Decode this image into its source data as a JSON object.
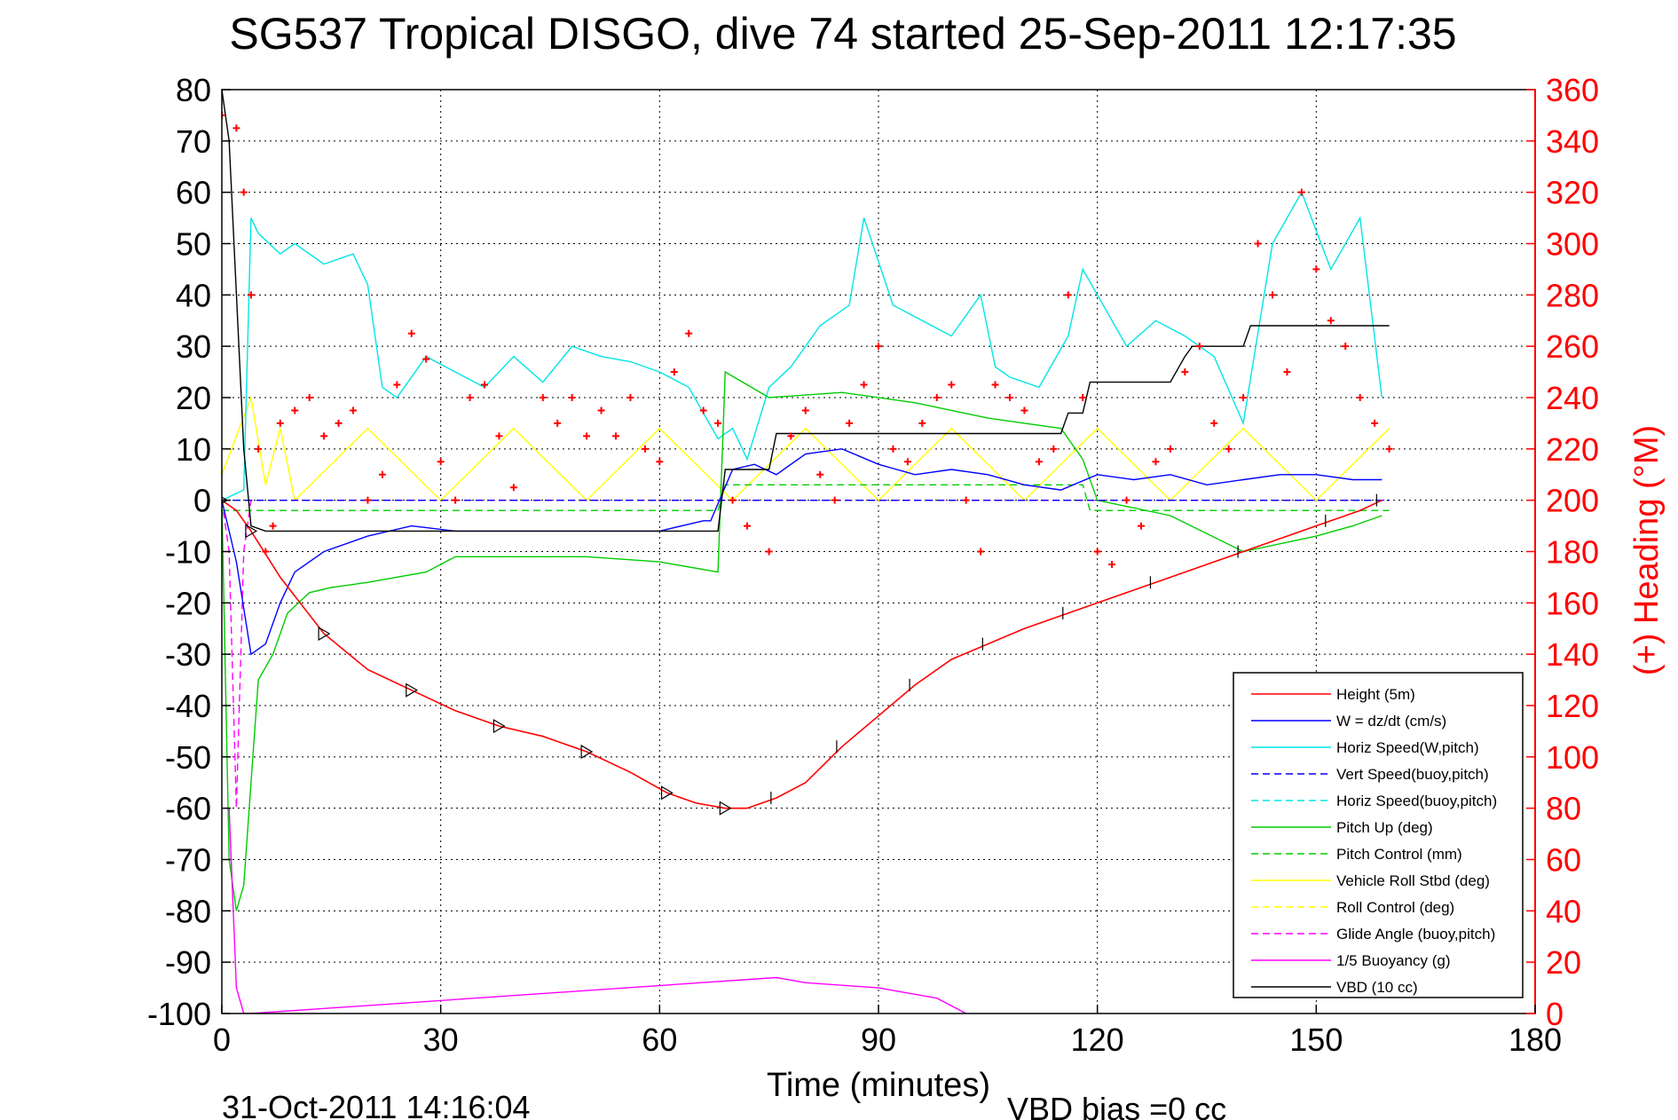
{
  "chart_data": {
    "type": "line",
    "title": "SG537 Tropical DISGO, dive 74 started 25-Sep-2011 12:17:35",
    "xlabel": "Time (minutes)",
    "ylabel_right": "(+) Heading (°M)",
    "xlim": [
      0,
      180
    ],
    "ylim": [
      -100,
      80
    ],
    "ylim_right": [
      0,
      360
    ],
    "x_ticks": [
      0,
      30,
      60,
      90,
      120,
      150,
      180
    ],
    "y_ticks": [
      80,
      70,
      60,
      50,
      40,
      30,
      20,
      10,
      0,
      -10,
      -20,
      -30,
      -40,
      -50,
      -60,
      -70,
      -80,
      -90,
      -100
    ],
    "y_right_ticks": [
      360,
      340,
      320,
      300,
      280,
      260,
      240,
      220,
      200,
      180,
      160,
      140,
      120,
      100,
      80,
      60,
      40,
      20,
      0
    ],
    "grid": true,
    "legend_position": "bottom-right",
    "footer_left": "31-Oct-2011 14:16:04",
    "footer_right": "VBD bias =0 cc",
    "colors": {
      "height": "#ff0000",
      "w": "#0000ff",
      "horiz_w": "#00e5e5",
      "vert_buoy": "#0000ff",
      "horiz_buoy": "#00e5e5",
      "pitch": "#00cc00",
      "pitch_ctrl": "#00cc00",
      "roll": "#ffff00",
      "roll_ctrl": "#ffff00",
      "glide": "#ff00ff",
      "buoyancy": "#ff00ff",
      "vbd": "#000000",
      "heading": "#ff0000"
    },
    "series": [
      {
        "key": "height",
        "name": "Height (5m)",
        "style": "solid",
        "x": [
          0,
          2,
          4,
          8,
          14,
          20,
          26,
          32,
          38,
          44,
          50,
          56,
          61,
          65,
          69,
          72,
          76,
          80,
          85,
          90,
          95,
          100,
          105,
          110,
          116,
          122,
          128,
          134,
          140,
          146,
          152,
          156,
          159
        ],
        "values": [
          0,
          -2,
          -6,
          -15,
          -26,
          -33,
          -37,
          -41,
          -44,
          -46,
          -49,
          -53,
          -57,
          -59,
          -60,
          -60,
          -58,
          -55,
          -48,
          -42,
          -36,
          -31,
          -28,
          -25,
          -22,
          -19,
          -16,
          -13,
          -10,
          -7,
          -4,
          -2,
          0
        ]
      },
      {
        "key": "w",
        "name": "W = dz/dt (cm/s)",
        "style": "solid",
        "x": [
          0,
          2,
          4,
          6,
          8,
          10,
          14,
          20,
          26,
          32,
          40,
          50,
          60,
          66,
          67,
          70,
          73,
          76,
          80,
          85,
          90,
          95,
          100,
          105,
          110,
          115,
          120,
          125,
          130,
          135,
          140,
          145,
          150,
          155,
          159
        ],
        "values": [
          0,
          -12,
          -30,
          -28,
          -20,
          -14,
          -10,
          -7,
          -5,
          -6,
          -6,
          -6,
          -6,
          -4,
          -4,
          6,
          7,
          5,
          9,
          10,
          7,
          5,
          6,
          5,
          3,
          2,
          5,
          4,
          5,
          3,
          4,
          5,
          5,
          4,
          4
        ]
      },
      {
        "key": "horiz_w",
        "name": "Horiz Speed(W,pitch)",
        "style": "solid",
        "x": [
          0,
          3,
          4,
          5,
          8,
          10,
          14,
          18,
          20,
          22,
          24,
          28,
          32,
          36,
          40,
          44,
          48,
          52,
          56,
          60,
          64,
          68,
          70,
          72,
          75,
          78,
          82,
          86,
          88,
          92,
          96,
          100,
          104,
          106,
          108,
          112,
          116,
          118,
          120,
          124,
          128,
          132,
          136,
          140,
          144,
          148,
          152,
          156,
          159
        ],
        "values": [
          0,
          2,
          55,
          52,
          48,
          50,
          46,
          48,
          42,
          22,
          20,
          28,
          25,
          22,
          28,
          23,
          30,
          28,
          27,
          25,
          22,
          12,
          14,
          8,
          22,
          26,
          34,
          38,
          55,
          38,
          35,
          32,
          40,
          26,
          24,
          22,
          32,
          45,
          40,
          30,
          35,
          32,
          28,
          15,
          50,
          60,
          45,
          55,
          20
        ]
      },
      {
        "key": "vert_buoy",
        "name": "Vert Speed(buoy,pitch)",
        "style": "dashed",
        "x": [
          0,
          160
        ],
        "values": [
          0,
          0
        ]
      },
      {
        "key": "horiz_buoy",
        "name": "Horiz Speed(buoy,pitch)",
        "style": "dashed",
        "x": [
          0,
          160
        ],
        "values": [
          0,
          0
        ]
      },
      {
        "key": "pitch",
        "name": "Pitch Up (deg)",
        "style": "solid",
        "x": [
          0,
          1,
          2,
          3,
          5,
          7,
          9,
          12,
          15,
          20,
          28,
          32,
          40,
          50,
          60,
          68,
          69,
          75,
          85,
          95,
          105,
          115,
          118,
          120,
          130,
          140,
          150,
          155,
          159
        ],
        "values": [
          0,
          -70,
          -80,
          -75,
          -35,
          -30,
          -22,
          -18,
          -17,
          -16,
          -14,
          -11,
          -11,
          -11,
          -12,
          -14,
          25,
          20,
          21,
          19,
          16,
          14,
          8,
          0,
          -3,
          -10,
          -7,
          -5,
          -3
        ]
      },
      {
        "key": "pitch_ctrl",
        "name": "Pitch Control (mm)",
        "style": "dashed",
        "x": [
          0,
          68,
          69,
          118,
          119,
          160
        ],
        "values": [
          -2,
          -2,
          3,
          3,
          -2,
          -2
        ]
      },
      {
        "key": "roll",
        "name": "Vehicle Roll Stbd (deg)",
        "style": "solid",
        "x": [
          0,
          4,
          6,
          8,
          10,
          20,
          30,
          40,
          50,
          60,
          70,
          80,
          90,
          100,
          110,
          120,
          130,
          140,
          150,
          160
        ],
        "values": [
          5,
          20,
          3,
          14,
          0,
          14,
          0,
          14,
          0,
          14,
          0,
          14,
          0,
          14,
          0,
          14,
          0,
          14,
          0,
          14
        ]
      },
      {
        "key": "roll_ctrl",
        "name": "Roll Control (deg)",
        "style": "dashed",
        "x": [
          0,
          160
        ],
        "values": [
          0,
          0
        ]
      },
      {
        "key": "glide",
        "name": "Glide Angle (buoy,pitch)",
        "style": "dashed",
        "x": [
          0,
          1,
          2,
          3,
          4,
          160
        ],
        "values": [
          0,
          -10,
          -60,
          -10,
          0,
          0
        ]
      },
      {
        "key": "buoyancy",
        "name": "1/5 Buoyancy (g)",
        "style": "solid",
        "x": [
          1,
          2,
          3,
          4,
          76,
          80,
          90,
          98,
          102
        ],
        "values": [
          -60,
          -95,
          -100,
          -100,
          -93,
          -94,
          -95,
          -97,
          -100
        ]
      },
      {
        "key": "vbd",
        "name": "VBD (10 cc)",
        "style": "solid",
        "x": [
          0,
          1,
          3,
          4,
          6,
          10,
          20,
          30,
          40,
          50,
          60,
          68,
          69,
          72,
          75,
          76,
          80,
          95,
          115,
          116,
          118,
          119,
          130,
          132,
          133,
          140,
          141,
          150,
          160
        ],
        "values": [
          80,
          70,
          10,
          -5,
          -6,
          -6,
          -6,
          -6,
          -6,
          -6,
          -6,
          -6,
          6,
          6,
          6,
          13,
          13,
          13,
          13,
          17,
          17,
          23,
          23,
          28,
          30,
          30,
          34,
          34,
          34
        ]
      },
      {
        "key": "heading",
        "name": "(+) Heading",
        "axis": "right",
        "style": "markers",
        "x": [
          0,
          2,
          3,
          4,
          5,
          6,
          7,
          8,
          10,
          12,
          14,
          16,
          18,
          20,
          22,
          24,
          26,
          28,
          30,
          32,
          34,
          36,
          38,
          40,
          44,
          46,
          48,
          50,
          52,
          54,
          56,
          58,
          60,
          62,
          64,
          66,
          68,
          70,
          72,
          75,
          78,
          80,
          82,
          84,
          86,
          88,
          90,
          92,
          94,
          96,
          98,
          100,
          102,
          104,
          106,
          108,
          110,
          112,
          114,
          116,
          118,
          120,
          122,
          124,
          126,
          128,
          130,
          132,
          134,
          136,
          138,
          140,
          142,
          144,
          146,
          148,
          150,
          152,
          154,
          156,
          158,
          160
        ],
        "values": [
          350,
          345,
          320,
          280,
          220,
          180,
          190,
          230,
          235,
          240,
          225,
          230,
          235,
          200,
          210,
          245,
          265,
          255,
          215,
          200,
          240,
          245,
          225,
          205,
          240,
          230,
          240,
          225,
          235,
          225,
          240,
          220,
          215,
          250,
          265,
          235,
          230,
          200,
          190,
          180,
          225,
          235,
          210,
          200,
          230,
          245,
          260,
          220,
          215,
          230,
          240,
          245,
          200,
          180,
          245,
          240,
          235,
          215,
          220,
          280,
          240,
          180,
          175,
          200,
          190,
          215,
          220,
          250,
          260,
          230,
          220,
          240,
          300,
          280,
          250,
          320,
          290,
          270,
          260,
          240,
          230,
          220
        ]
      }
    ]
  }
}
